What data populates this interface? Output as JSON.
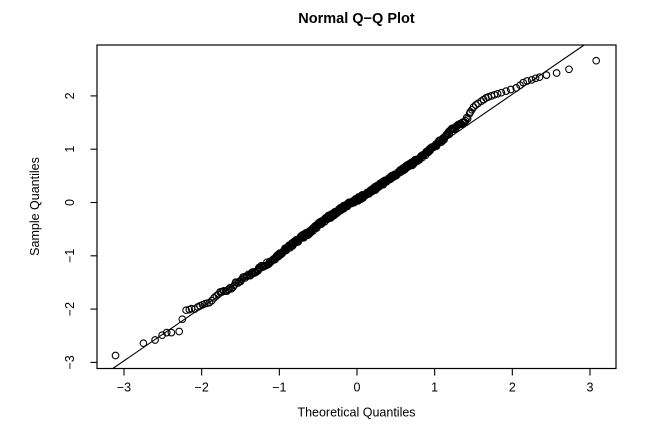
{
  "colors": {
    "foreground": "#000000",
    "background": "#ffffff"
  },
  "chart_data": {
    "type": "scatter",
    "title": "Normal Q−Q Plot",
    "xlabel": "Theoretical Quantiles",
    "ylabel": "Sample Quantiles",
    "xlim": [
      -3.35,
      3.34
    ],
    "ylim": [
      -3.11,
      2.96
    ],
    "grid": false,
    "point_style": "open-circle",
    "x_ticks": [
      {
        "v": -3,
        "label": "−3"
      },
      {
        "v": -2,
        "label": "−2"
      },
      {
        "v": -1,
        "label": "−1"
      },
      {
        "v": 0,
        "label": "0"
      },
      {
        "v": 1,
        "label": "1"
      },
      {
        "v": 2,
        "label": "2"
      },
      {
        "v": 3,
        "label": "3"
      }
    ],
    "y_ticks": [
      {
        "v": -3,
        "label": "−3"
      },
      {
        "v": -2,
        "label": "−2"
      },
      {
        "v": -1,
        "label": "−1"
      },
      {
        "v": 0,
        "label": "0"
      },
      {
        "v": 1,
        "label": "1"
      },
      {
        "v": 2,
        "label": "2"
      }
    ],
    "reference_line": {
      "slope": 1.0,
      "intercept": 0.03
    },
    "n_points": 500,
    "lower_tail_points": [
      [
        -3.11,
        -2.87
      ],
      [
        -2.75,
        -2.64
      ],
      [
        -2.6,
        -2.58
      ],
      [
        -2.51,
        -2.49
      ],
      [
        -2.45,
        -2.44
      ],
      [
        -2.39,
        -2.44
      ],
      [
        -2.29,
        -2.42
      ],
      [
        -2.25,
        -2.19
      ],
      [
        -2.2,
        -2.02
      ],
      [
        -2.16,
        -2.01
      ],
      [
        -2.13,
        -1.99
      ],
      [
        -2.09,
        -2.0
      ],
      [
        -2.05,
        -1.96
      ],
      [
        -2.02,
        -1.94
      ],
      [
        -1.99,
        -1.92
      ],
      [
        -1.96,
        -1.9
      ],
      [
        -1.93,
        -1.89
      ],
      [
        -1.9,
        -1.88
      ],
      [
        -1.87,
        -1.84
      ],
      [
        -1.84,
        -1.79
      ],
      [
        -1.81,
        -1.75
      ]
    ],
    "upper_tail_points": [
      [
        1.45,
        1.67
      ],
      [
        1.46,
        1.7
      ],
      [
        1.48,
        1.74
      ],
      [
        1.5,
        1.79
      ],
      [
        1.53,
        1.83
      ],
      [
        1.56,
        1.86
      ],
      [
        1.6,
        1.9
      ],
      [
        1.63,
        1.93
      ],
      [
        1.66,
        1.96
      ],
      [
        1.69,
        1.98
      ],
      [
        1.73,
        2.0
      ],
      [
        1.77,
        2.02
      ],
      [
        1.81,
        2.04
      ],
      [
        1.86,
        2.06
      ],
      [
        1.92,
        2.09
      ],
      [
        1.98,
        2.12
      ],
      [
        2.05,
        2.15
      ],
      [
        2.1,
        2.2
      ],
      [
        2.14,
        2.25
      ],
      [
        2.19,
        2.28
      ],
      [
        2.25,
        2.3
      ],
      [
        2.3,
        2.33
      ],
      [
        2.35,
        2.35
      ],
      [
        2.44,
        2.39
      ],
      [
        2.57,
        2.43
      ],
      [
        2.73,
        2.5
      ],
      [
        3.08,
        2.66
      ]
    ],
    "band_control_points": [
      [
        -1.8,
        -1.72
      ],
      [
        -1.7,
        -1.66
      ],
      [
        -1.6,
        -1.57
      ],
      [
        -1.5,
        -1.46
      ],
      [
        -1.4,
        -1.38
      ],
      [
        -1.3,
        -1.28
      ],
      [
        -1.2,
        -1.18
      ],
      [
        -1.1,
        -1.09
      ],
      [
        -1.0,
        -0.97
      ],
      [
        -0.9,
        -0.86
      ],
      [
        -0.8,
        -0.75
      ],
      [
        -0.7,
        -0.64
      ],
      [
        -0.6,
        -0.55
      ],
      [
        -0.5,
        -0.42
      ],
      [
        -0.39,
        -0.3
      ],
      [
        -0.3,
        -0.22
      ],
      [
        -0.2,
        -0.12
      ],
      [
        -0.1,
        -0.02
      ],
      [
        0.0,
        0.05
      ],
      [
        0.1,
        0.14
      ],
      [
        0.2,
        0.23
      ],
      [
        0.3,
        0.33
      ],
      [
        0.4,
        0.42
      ],
      [
        0.5,
        0.52
      ],
      [
        0.6,
        0.63
      ],
      [
        0.7,
        0.72
      ],
      [
        0.8,
        0.82
      ],
      [
        0.9,
        0.94
      ],
      [
        1.0,
        1.06
      ],
      [
        1.1,
        1.18
      ],
      [
        1.2,
        1.33
      ],
      [
        1.3,
        1.44
      ],
      [
        1.35,
        1.49
      ],
      [
        1.43,
        1.58
      ]
    ],
    "band_index_range": [
      19,
      462
    ],
    "band_jitter": 0.035
  }
}
